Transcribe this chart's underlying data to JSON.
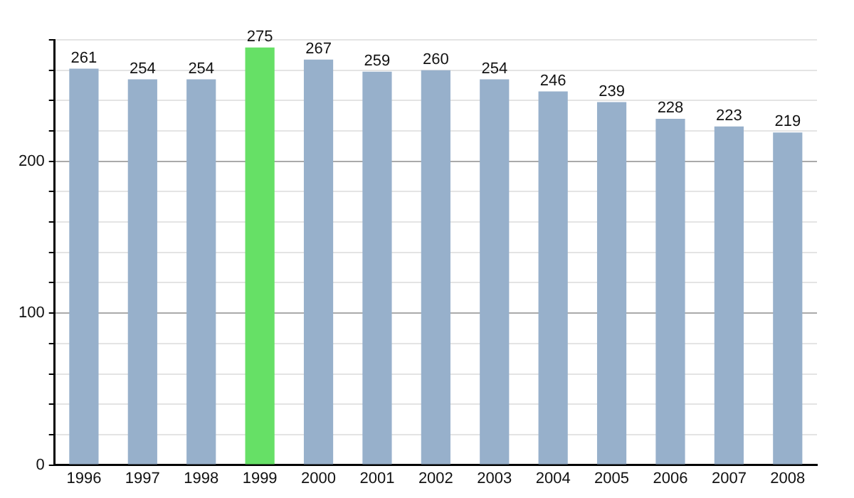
{
  "chart_data": {
    "type": "bar",
    "categories": [
      "1996",
      "1997",
      "1998",
      "1999",
      "2000",
      "2001",
      "2002",
      "2003",
      "2004",
      "2005",
      "2006",
      "2007",
      "2008"
    ],
    "values": [
      261,
      254,
      254,
      275,
      267,
      259,
      260,
      254,
      246,
      239,
      228,
      223,
      219
    ],
    "colors": [
      "#97b0cb",
      "#97b0cb",
      "#97b0cb",
      "#66e066",
      "#97b0cb",
      "#97b0cb",
      "#97b0cb",
      "#97b0cb",
      "#97b0cb",
      "#97b0cb",
      "#97b0cb",
      "#97b0cb",
      "#97b0cb"
    ],
    "ylim": [
      0,
      280
    ],
    "yticks": [
      0,
      {
        "value": 20,
        "label": null
      },
      {
        "value": 40,
        "label": null
      },
      {
        "value": 60,
        "label": null
      },
      {
        "value": 80,
        "label": null
      },
      100,
      {
        "value": 120,
        "label": null
      },
      {
        "value": 140,
        "label": null
      },
      {
        "value": 160,
        "label": null
      },
      {
        "value": 180,
        "label": null
      },
      200,
      {
        "value": 220,
        "label": null
      },
      {
        "value": 240,
        "label": null
      },
      {
        "value": 260,
        "label": null
      },
      {
        "value": 280,
        "label": null
      }
    ],
    "grid": "y",
    "legend": false,
    "data_labels": true
  }
}
